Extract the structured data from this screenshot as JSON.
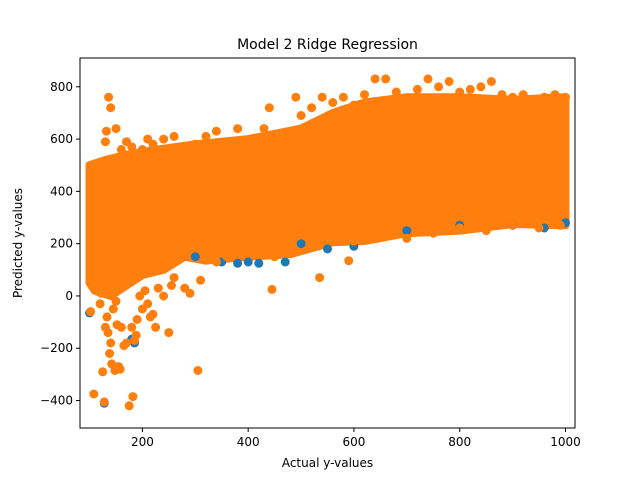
{
  "chart_data": {
    "type": "scatter",
    "title": "Model 2 Ridge Regression",
    "xlabel": "Actual y-values",
    "ylabel": "Predicted y-values",
    "xlim": [
      82,
      1018
    ],
    "ylim": [
      -505,
      910
    ],
    "xticks": [
      200,
      400,
      600,
      800,
      1000
    ],
    "yticks": [
      -400,
      -200,
      0,
      200,
      400,
      600,
      800
    ],
    "grid": false,
    "legend": "none",
    "marker": "circle",
    "series": [
      {
        "color": "#1f77b4",
        "points": [
          [
            100,
            -65
          ],
          [
            128,
            -410
          ],
          [
            180,
            -165
          ],
          [
            185,
            -180
          ],
          [
            300,
            150
          ],
          [
            350,
            130
          ],
          [
            380,
            125
          ],
          [
            400,
            130
          ],
          [
            420,
            125
          ],
          [
            470,
            130
          ],
          [
            500,
            200
          ],
          [
            550,
            180
          ],
          [
            600,
            190
          ],
          [
            700,
            250
          ],
          [
            800,
            270
          ],
          [
            900,
            270
          ],
          [
            960,
            260
          ],
          [
            1000,
            280
          ]
        ]
      },
      {
        "color": "#ff7f0e",
        "points": [
          [
            102,
            -60
          ],
          [
            108,
            -375
          ],
          [
            120,
            -30
          ],
          [
            122,
            10
          ],
          [
            125,
            -290
          ],
          [
            128,
            -405
          ],
          [
            130,
            -120
          ],
          [
            133,
            -80
          ],
          [
            135,
            -140
          ],
          [
            138,
            -220
          ],
          [
            140,
            -180
          ],
          [
            142,
            -260
          ],
          [
            145,
            -50
          ],
          [
            148,
            -285
          ],
          [
            150,
            -20
          ],
          [
            152,
            -110
          ],
          [
            155,
            -270
          ],
          [
            158,
            -280
          ],
          [
            160,
            -120
          ],
          [
            165,
            -190
          ],
          [
            170,
            -180
          ],
          [
            175,
            -420
          ],
          [
            178,
            150
          ],
          [
            180,
            -120
          ],
          [
            182,
            -385
          ],
          [
            185,
            -170
          ],
          [
            188,
            -150
          ],
          [
            190,
            -90
          ],
          [
            195,
            0
          ],
          [
            200,
            -50
          ],
          [
            205,
            20
          ],
          [
            210,
            -30
          ],
          [
            215,
            -80
          ],
          [
            220,
            -70
          ],
          [
            225,
            -120
          ],
          [
            230,
            30
          ],
          [
            240,
            0
          ],
          [
            250,
            -140
          ],
          [
            255,
            40
          ],
          [
            260,
            70
          ],
          [
            270,
            150
          ],
          [
            280,
            30
          ],
          [
            290,
            10
          ],
          [
            300,
            250
          ],
          [
            305,
            -285
          ],
          [
            310,
            60
          ],
          [
            340,
            130
          ],
          [
            360,
            150
          ],
          [
            400,
            200
          ],
          [
            420,
            170
          ],
          [
            445,
            25
          ],
          [
            450,
            150
          ],
          [
            480,
            170
          ],
          [
            535,
            70
          ],
          [
            590,
            135
          ],
          [
            600,
            210
          ],
          [
            650,
            230
          ],
          [
            700,
            220
          ],
          [
            750,
            240
          ],
          [
            800,
            260
          ],
          [
            850,
            250
          ],
          [
            900,
            270
          ],
          [
            950,
            260
          ],
          [
            990,
            270
          ],
          [
            136,
            760
          ],
          [
            140,
            720
          ],
          [
            130,
            590
          ],
          [
            132,
            630
          ],
          [
            150,
            640
          ],
          [
            170,
            590
          ],
          [
            160,
            560
          ],
          [
            210,
            600
          ],
          [
            180,
            570
          ],
          [
            200,
            560
          ],
          [
            220,
            580
          ],
          [
            240,
            600
          ],
          [
            260,
            610
          ],
          [
            300,
            580
          ],
          [
            320,
            610
          ],
          [
            340,
            630
          ],
          [
            380,
            640
          ],
          [
            430,
            640
          ],
          [
            440,
            720
          ],
          [
            490,
            760
          ],
          [
            500,
            690
          ],
          [
            520,
            720
          ],
          [
            540,
            760
          ],
          [
            560,
            740
          ],
          [
            580,
            760
          ],
          [
            600,
            730
          ],
          [
            620,
            770
          ],
          [
            640,
            830
          ],
          [
            660,
            830
          ],
          [
            680,
            780
          ],
          [
            700,
            740
          ],
          [
            720,
            790
          ],
          [
            740,
            830
          ],
          [
            760,
            800
          ],
          [
            780,
            820
          ],
          [
            800,
            780
          ],
          [
            820,
            790
          ],
          [
            840,
            800
          ],
          [
            860,
            820
          ],
          [
            880,
            770
          ],
          [
            900,
            760
          ],
          [
            920,
            770
          ],
          [
            940,
            750
          ],
          [
            960,
            760
          ],
          [
            980,
            770
          ],
          [
            1000,
            760
          ]
        ]
      }
    ]
  }
}
